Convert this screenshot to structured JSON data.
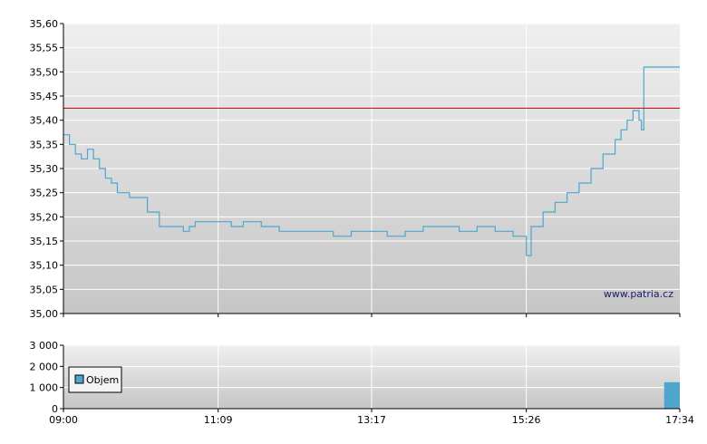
{
  "chart_data": [
    {
      "type": "line",
      "x_ticks": [
        "09:00",
        "11:09",
        "13:17",
        "15:26",
        "17:34"
      ],
      "y_ticks": [
        "35,00",
        "35,05",
        "35,10",
        "35,15",
        "35,20",
        "35,25",
        "35,30",
        "35,35",
        "35,40",
        "35,45",
        "35,50",
        "35,55",
        "35,60"
      ],
      "ylim": [
        35.0,
        35.6
      ],
      "grid": true,
      "reference_line": {
        "value": 35.425,
        "color": "#cc0000"
      },
      "watermark": "www.patria.cz",
      "colors": {
        "line": "#4ea6cf",
        "plot_bg_top": "#eeeeee",
        "plot_bg_bottom": "#c8c8c8"
      },
      "series": [
        {
          "x": [
            "09:00",
            "09:05",
            "09:10",
            "09:15",
            "09:20",
            "09:25",
            "09:30",
            "09:35",
            "09:40",
            "09:45",
            "09:50",
            "09:55",
            "10:00",
            "10:10",
            "10:20",
            "10:30",
            "10:40",
            "10:45",
            "10:50",
            "11:00",
            "11:10",
            "11:20",
            "11:30",
            "11:45",
            "12:00",
            "12:15",
            "12:30",
            "12:45",
            "13:00",
            "13:15",
            "13:30",
            "13:45",
            "14:00",
            "14:15",
            "14:30",
            "14:45",
            "15:00",
            "15:15",
            "15:26",
            "15:30",
            "15:40",
            "15:50",
            "16:00",
            "16:10",
            "16:20",
            "16:30",
            "16:40",
            "16:45",
            "16:50",
            "16:55",
            "17:00",
            "17:02",
            "17:04",
            "17:34"
          ],
          "y": [
            35.37,
            35.35,
            35.33,
            35.32,
            35.34,
            35.32,
            35.3,
            35.28,
            35.27,
            35.25,
            35.25,
            35.24,
            35.24,
            35.21,
            35.18,
            35.18,
            35.17,
            35.18,
            35.19,
            35.19,
            35.19,
            35.18,
            35.19,
            35.18,
            35.17,
            35.17,
            35.17,
            35.16,
            35.17,
            35.17,
            35.16,
            35.17,
            35.18,
            35.18,
            35.17,
            35.18,
            35.17,
            35.16,
            35.12,
            35.18,
            35.21,
            35.23,
            35.25,
            35.27,
            35.3,
            35.33,
            35.36,
            35.38,
            35.4,
            35.42,
            35.4,
            35.38,
            35.51,
            35.51
          ]
        }
      ]
    },
    {
      "type": "bar",
      "x_ticks": [
        "09:00",
        "11:09",
        "13:17",
        "15:26",
        "17:34"
      ],
      "y_ticks": [
        "0",
        "1 000",
        "2 000",
        "3 000"
      ],
      "ylim": [
        0,
        3000
      ],
      "legend": {
        "label": "Objem",
        "position": "left"
      },
      "colors": {
        "bar": "#4ea6cf"
      },
      "series": [
        {
          "name": "Objem",
          "x": [
            "17:30"
          ],
          "values": [
            1250
          ]
        }
      ]
    }
  ]
}
